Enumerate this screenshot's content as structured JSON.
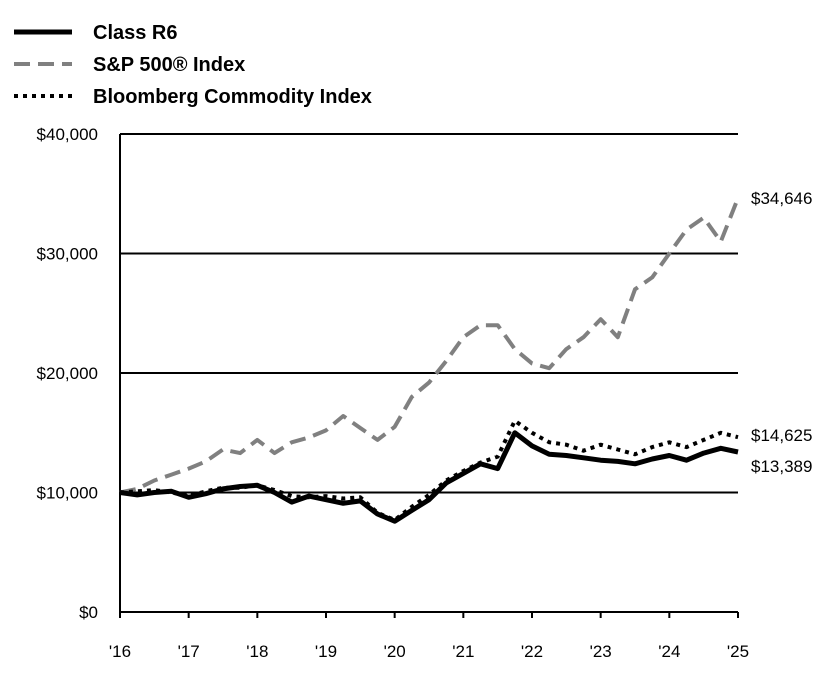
{
  "chart_data": {
    "type": "line",
    "x": [
      2016.0,
      2016.25,
      2016.5,
      2016.75,
      2017.0,
      2017.25,
      2017.5,
      2017.75,
      2018.0,
      2018.25,
      2018.5,
      2018.75,
      2019.0,
      2019.25,
      2019.5,
      2019.75,
      2020.0,
      2020.25,
      2020.5,
      2020.75,
      2021.0,
      2021.25,
      2021.5,
      2021.75,
      2022.0,
      2022.25,
      2022.5,
      2022.75,
      2023.0,
      2023.25,
      2023.5,
      2023.75,
      2024.0,
      2024.25,
      2024.5,
      2024.75,
      2025.0
    ],
    "series": [
      {
        "name": "Class R6",
        "style": "solid",
        "color": "#000000",
        "values": [
          10000,
          9800,
          10000,
          10100,
          9600,
          9900,
          10300,
          10500,
          10600,
          10000,
          9200,
          9700,
          9400,
          9100,
          9300,
          8200,
          7600,
          8500,
          9400,
          10800,
          11600,
          12400,
          12000,
          15000,
          13900,
          13200,
          13100,
          12900,
          12700,
          12600,
          12400,
          12800,
          13100,
          12700,
          13300,
          13700,
          13389
        ]
      },
      {
        "name": "S&P 500® Index",
        "style": "dashed",
        "color": "#808080",
        "values": [
          10000,
          10300,
          11000,
          11500,
          12000,
          12600,
          13600,
          13300,
          14400,
          13300,
          14200,
          14600,
          15200,
          16400,
          15400,
          14400,
          15500,
          18000,
          19200,
          21000,
          23000,
          24000,
          24000,
          22000,
          20800,
          20400,
          22000,
          23000,
          24500,
          23000,
          27000,
          28000,
          30000,
          32000,
          33000,
          31000,
          34646
        ]
      },
      {
        "name": "Bloomberg Commodity Index",
        "style": "dotted",
        "color": "#000000",
        "values": [
          10000,
          10100,
          10200,
          10000,
          9700,
          10100,
          10400,
          10400,
          10600,
          10200,
          9700,
          9600,
          9700,
          9500,
          9600,
          8300,
          7700,
          8800,
          9800,
          11000,
          11800,
          12500,
          13000,
          16000,
          15000,
          14200,
          14000,
          13500,
          14000,
          13600,
          13200,
          13800,
          14200,
          13800,
          14400,
          15000,
          14625
        ]
      }
    ],
    "end_labels": [
      "$34,646",
      "$14,625",
      "$13,389"
    ],
    "ylim": [
      0,
      40000
    ],
    "xlim": [
      2016,
      2025
    ],
    "y_ticks": [
      0,
      10000,
      20000,
      30000,
      40000
    ],
    "y_tick_labels": [
      "$0",
      "$10,000",
      "$20,000",
      "$30,000",
      "$40,000"
    ],
    "x_ticks": [
      2016,
      2017,
      2018,
      2019,
      2020,
      2021,
      2022,
      2023,
      2024,
      2025
    ],
    "x_tick_labels": [
      "'16",
      "'17",
      "'18",
      "'19",
      "'20",
      "'21",
      "'22",
      "'23",
      "'24",
      "'25"
    ],
    "grid": "horizontal",
    "legend_position": "top-left",
    "title": "",
    "xlabel": "",
    "ylabel": ""
  }
}
